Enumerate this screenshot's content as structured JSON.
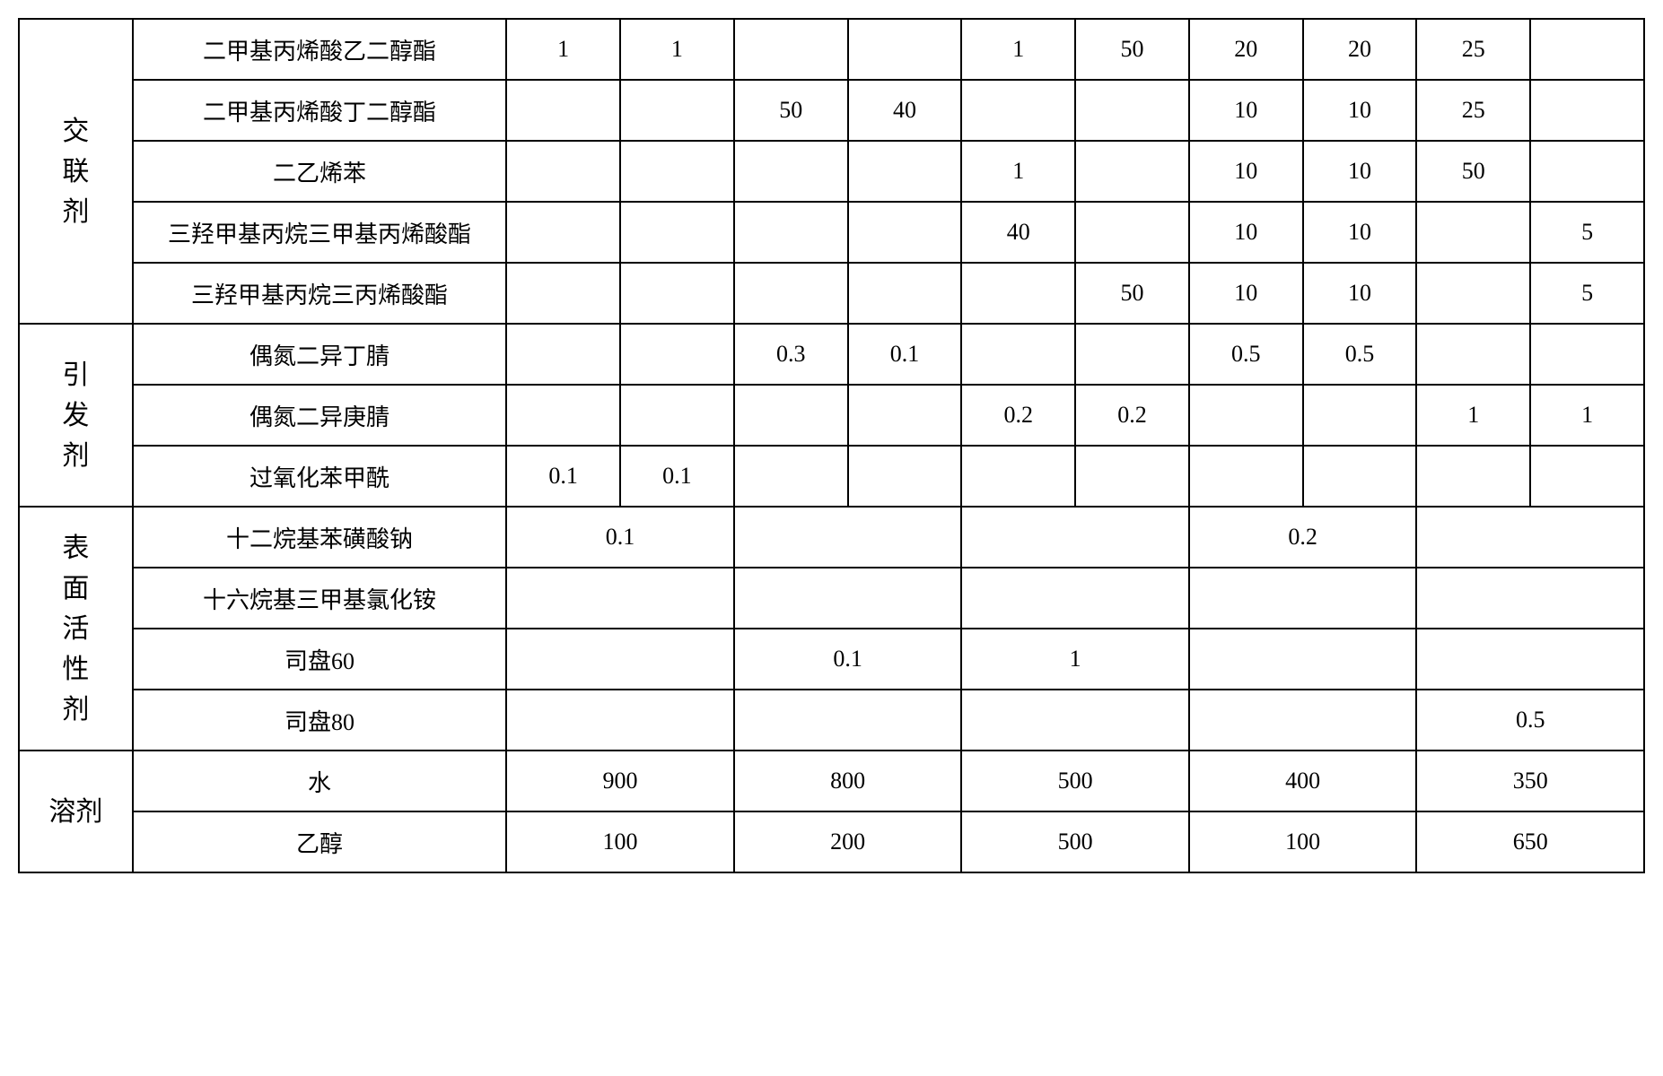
{
  "sections": {
    "crosslinker": "交联剂",
    "initiator": "引发剂",
    "surfactant": "表面活性剂",
    "solvent": "溶剂"
  },
  "rowNames": {
    "r1": "二甲基丙烯酸乙二醇酯",
    "r2": "二甲基丙烯酸丁二醇酯",
    "r3": "二乙烯苯",
    "r4": "三羟甲基丙烷三甲基丙烯酸酯",
    "r5": "三羟甲基丙烷三丙烯酸酯",
    "r6": "偶氮二异丁腈",
    "r7": "偶氮二异庚腈",
    "r8": "过氧化苯甲酰",
    "r9": "十二烷基苯磺酸钠",
    "r10": "十六烷基三甲基氯化铵",
    "r11": "司盘60",
    "r12": "司盘80",
    "r13": "水",
    "r14": "乙醇"
  },
  "d": {
    "r1": {
      "c1": "1",
      "c2": "1",
      "c3": "",
      "c4": "",
      "c5": "1",
      "c6": "50",
      "c7": "20",
      "c8": "20",
      "c9": "25",
      "c10": ""
    },
    "r2": {
      "c1": "",
      "c2": "",
      "c3": "50",
      "c4": "40",
      "c5": "",
      "c6": "",
      "c7": "10",
      "c8": "10",
      "c9": "25",
      "c10": ""
    },
    "r3": {
      "c1": "",
      "c2": "",
      "c3": "",
      "c4": "",
      "c5": "1",
      "c6": "",
      "c7": "10",
      "c8": "10",
      "c9": "50",
      "c10": ""
    },
    "r4": {
      "c1": "",
      "c2": "",
      "c3": "",
      "c4": "",
      "c5": "40",
      "c6": "",
      "c7": "10",
      "c8": "10",
      "c9": "",
      "c10": "5"
    },
    "r5": {
      "c1": "",
      "c2": "",
      "c3": "",
      "c4": "",
      "c5": "",
      "c6": "50",
      "c7": "10",
      "c8": "10",
      "c9": "",
      "c10": "5"
    },
    "r6": {
      "c1": "",
      "c2": "",
      "c3": "0.3",
      "c4": "0.1",
      "c5": "",
      "c6": "",
      "c7": "0.5",
      "c8": "0.5",
      "c9": "",
      "c10": ""
    },
    "r7": {
      "c1": "",
      "c2": "",
      "c3": "",
      "c4": "",
      "c5": "0.2",
      "c6": "0.2",
      "c7": "",
      "c8": "",
      "c9": "1",
      "c10": "1"
    },
    "r8": {
      "c1": "0.1",
      "c2": "0.1",
      "c3": "",
      "c4": "",
      "c5": "",
      "c6": "",
      "c7": "",
      "c8": "",
      "c9": "",
      "c10": ""
    },
    "r9": {
      "p1": "0.1",
      "p2": "",
      "p3": "",
      "p4": "0.2",
      "p5": ""
    },
    "r10": {
      "p1": "",
      "p2": "",
      "p3": "",
      "p4": "",
      "p5": ""
    },
    "r11": {
      "p1": "",
      "p2": "0.1",
      "p3": "1",
      "p4": "",
      "p5": ""
    },
    "r12": {
      "p1": "",
      "p2": "",
      "p3": "",
      "p4": "",
      "p5": "0.5"
    },
    "r13": {
      "p1": "900",
      "p2": "800",
      "p3": "500",
      "p4": "400",
      "p5": "350"
    },
    "r14": {
      "p1": "100",
      "p2": "200",
      "p3": "500",
      "p4": "100",
      "p5": "650"
    }
  }
}
